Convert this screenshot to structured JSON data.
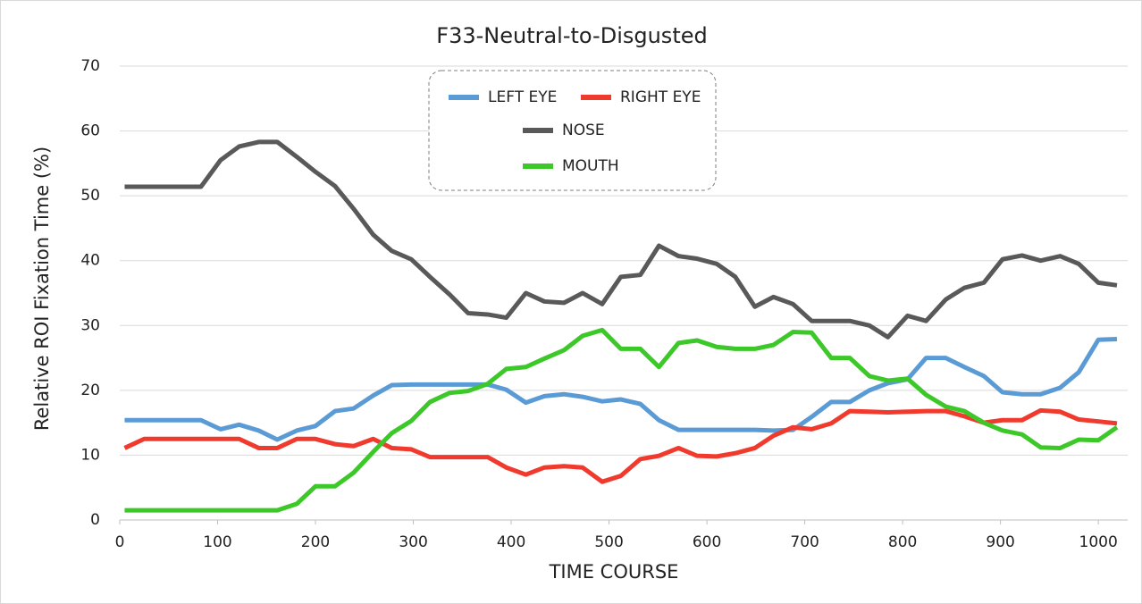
{
  "chart_data": {
    "type": "line",
    "title": "F33-Neutral-to-Disgusted",
    "x_label": "TIME  COURSE",
    "y_label": "Relative  ROI  Fixation  Time  (%)",
    "x": [
      5,
      25,
      44,
      64,
      83,
      103,
      122,
      142,
      161,
      181,
      200,
      220,
      239,
      259,
      278,
      298,
      317,
      337,
      356,
      376,
      395,
      415,
      434,
      454,
      473,
      493,
      512,
      532,
      551,
      571,
      590,
      610,
      629,
      649,
      668,
      688,
      707,
      727,
      746,
      766,
      785,
      805,
      824,
      844,
      863,
      883,
      902,
      922,
      941,
      961,
      980,
      1000,
      1019
    ],
    "series": [
      {
        "name": "LEFT EYE",
        "color": "#5b9bd5",
        "values": [
          15.4,
          15.4,
          15.4,
          15.4,
          15.4,
          14,
          14.7,
          13.8,
          12.4,
          13.8,
          14.5,
          16.8,
          17.2,
          19.2,
          20.8,
          20.9,
          20.9,
          20.9,
          20.9,
          20.9,
          20.1,
          18.1,
          19.1,
          19.4,
          19,
          18.3,
          18.6,
          17.9,
          15.4,
          13.9,
          13.9,
          13.9,
          13.9,
          13.9,
          13.8,
          13.9,
          15.9,
          18.2,
          18.2,
          20,
          21.1,
          21.7,
          25,
          25,
          23.6,
          22.2,
          19.7,
          19.4,
          19.4,
          20.4,
          22.8,
          27.8,
          27.9
        ]
      },
      {
        "name": "RIGHT EYE",
        "color": "#f03a2e",
        "values": [
          11.1,
          12.5,
          12.5,
          12.5,
          12.5,
          12.5,
          12.5,
          11.1,
          11.1,
          12.5,
          12.5,
          11.7,
          11.4,
          12.5,
          11.1,
          10.9,
          9.7,
          9.7,
          9.7,
          9.7,
          8.1,
          7,
          8.1,
          8.3,
          8.1,
          5.9,
          6.8,
          9.4,
          9.9,
          11.1,
          9.9,
          9.8,
          10.3,
          11.1,
          13,
          14.3,
          14,
          14.9,
          16.8,
          16.7,
          16.6,
          16.7,
          16.8,
          16.8,
          16,
          15,
          15.4,
          15.4,
          16.9,
          16.7,
          15.5,
          15.2,
          14.9
        ]
      },
      {
        "name": "NOSE",
        "color": "#595959",
        "values": [
          51.4,
          51.4,
          51.4,
          51.4,
          51.4,
          55.5,
          57.6,
          58.3,
          58.3,
          56,
          53.7,
          51.5,
          48,
          44,
          41.5,
          40.2,
          37.5,
          34.8,
          31.9,
          31.7,
          31.2,
          35,
          33.7,
          33.5,
          35,
          33.3,
          37.5,
          37.8,
          42.3,
          40.7,
          40.3,
          39.5,
          37.5,
          32.9,
          34.4,
          33.3,
          30.7,
          30.7,
          30.7,
          30,
          28.2,
          31.5,
          30.7,
          34,
          35.8,
          36.6,
          40.2,
          40.8,
          40,
          40.7,
          39.5,
          36.6,
          36.2
        ]
      },
      {
        "name": "MOUTH",
        "color": "#3cc828",
        "values": [
          1.5,
          1.5,
          1.5,
          1.5,
          1.5,
          1.5,
          1.5,
          1.5,
          1.5,
          2.5,
          5.2,
          5.2,
          7.3,
          10.5,
          13.4,
          15.3,
          18.2,
          19.6,
          19.9,
          21,
          23.3,
          23.6,
          24.9,
          26.2,
          28.4,
          29.3,
          26.4,
          26.4,
          23.6,
          27.3,
          27.7,
          26.7,
          26.4,
          26.4,
          27,
          29,
          28.9,
          25,
          25,
          22.2,
          21.5,
          21.8,
          19.3,
          17.5,
          16.8,
          15,
          13.8,
          13.2,
          11.2,
          11.1,
          12.4,
          12.3,
          14.3
        ]
      }
    ],
    "xlim": [
      0,
      1030
    ],
    "xticks": [
      0,
      100,
      200,
      300,
      400,
      500,
      600,
      700,
      800,
      900,
      1000
    ],
    "ylim": [
      0,
      70
    ],
    "yticks": [
      0,
      10,
      20,
      30,
      40,
      50,
      60,
      70
    ],
    "grid": true
  }
}
